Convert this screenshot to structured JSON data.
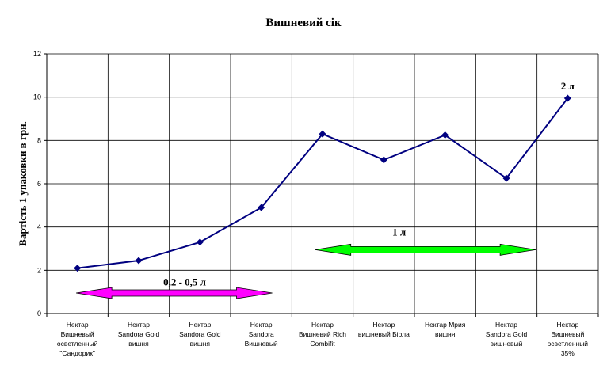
{
  "chart_data": {
    "type": "line",
    "title": "Вишневий сік",
    "ylabel": "Вартість 1 упаковки в грн.",
    "xlabel": "",
    "ylim": [
      0,
      12
    ],
    "yticks": [
      "0",
      "2",
      "4",
      "6",
      "8",
      "10",
      "12"
    ],
    "grid": true,
    "categories": [
      [
        "Нектар",
        "Вишневый",
        "осветленный",
        "\"Сандорик\""
      ],
      [
        "Нектар",
        "Sandora Gold",
        "вишня"
      ],
      [
        "Нектар",
        "Sandora Gold",
        "вишня"
      ],
      [
        "Нектар",
        "Sandora",
        "Вишневый"
      ],
      [
        "Нектар",
        "Вишневий Rich",
        "Combifit"
      ],
      [
        "Нектар",
        "вишневый Біола"
      ],
      [
        "Нектар Мрия",
        "вишня"
      ],
      [
        "Нектар",
        "Sandora Gold",
        "вишневый"
      ],
      [
        "Нектар",
        "Вишневый",
        "осветленный",
        "35%"
      ]
    ],
    "series": [
      {
        "values": [
          2.1,
          2.45,
          3.3,
          4.9,
          8.3,
          7.1,
          8.25,
          6.25,
          9.95
        ]
      }
    ],
    "annotations": {
      "range_small": "0,2 - 0,5 л",
      "range_1l": "1 л",
      "label_2l": "2 л"
    },
    "colors": {
      "line": "#000080",
      "marker": "#000080",
      "arrow_small": "#ff00ff",
      "arrow_1l": "#00ff00"
    }
  }
}
